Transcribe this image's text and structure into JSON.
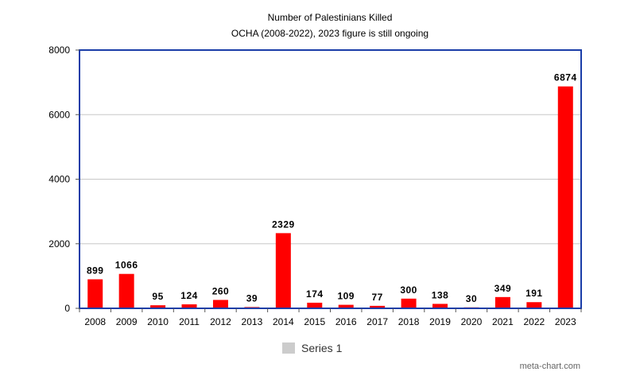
{
  "chart_data": {
    "type": "bar",
    "title": "Number of Palestinians Killed",
    "subtitle": "OCHA (2008-2022), 2023 figure is still ongoing",
    "categories": [
      "2008",
      "2009",
      "2010",
      "2011",
      "2012",
      "2013",
      "2014",
      "2015",
      "2016",
      "2017",
      "2018",
      "2019",
      "2020",
      "2021",
      "2022",
      "2023"
    ],
    "series": [
      {
        "name": "Series 1",
        "values": [
          899,
          1066,
          95,
          124,
          260,
          39,
          2329,
          174,
          109,
          77,
          300,
          138,
          30,
          349,
          191,
          6874
        ],
        "color": "#ff0000"
      }
    ],
    "data_labels": [
      "899",
      "1066",
      "95",
      "124",
      "260",
      "39",
      "2329",
      "174",
      "109",
      "77",
      "300",
      "138",
      "30",
      "349",
      "191",
      "6874"
    ],
    "ylim": [
      0,
      8000
    ],
    "yticks": [
      0,
      2000,
      4000,
      6000,
      8000
    ],
    "ytick_labels": [
      "0",
      "2000",
      "4000",
      "6000",
      "8000"
    ],
    "grid": true,
    "legend_position": "bottom",
    "legend_swatch_color": "#cccccc",
    "frame_color": "#1a3da8",
    "credit": "meta-chart.com"
  }
}
